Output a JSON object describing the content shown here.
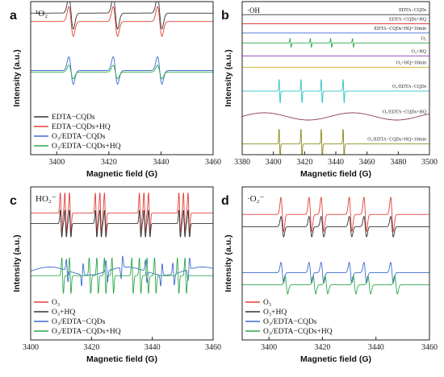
{
  "chart_data": [
    {
      "panel_letter": "a",
      "type": "line",
      "species_label": "¹O₂",
      "xlabel": "Magnetic field (G)",
      "ylabel": "Intensity (a.u.)",
      "xlim": [
        3390,
        3460
      ],
      "xticks": [
        3400,
        3420,
        3440,
        3460
      ],
      "legend_position": "bottom-left",
      "series": [
        {
          "name": "EDTA−CQDs",
          "color": "#333333",
          "peaks": [
            3405.5,
            3422.5,
            3439.5
          ],
          "amplitude": 1.0
        },
        {
          "name": "EDTA−CQDs+HQ",
          "color": "#e0403a",
          "peaks": [
            3405.5,
            3422.5,
            3439.5
          ],
          "amplitude": 0.95
        },
        {
          "name": "O₃/EDTA−CQDs",
          "color": "#3a6bd1",
          "peaks": [
            3405.5,
            3422.5,
            3439.5
          ],
          "amplitude": 0.8
        },
        {
          "name": "O₃/EDTA−CQDs+HQ",
          "color": "#2da84a",
          "peaks": [
            3405.5,
            3422.5,
            3439.5
          ],
          "amplitude": 0.45
        }
      ]
    },
    {
      "panel_letter": "b",
      "type": "line",
      "species_label": "·OH",
      "xlabel": "Magnetic field (G)",
      "ylabel": "Intensity (a.u.)",
      "xlim": [
        3380,
        3500
      ],
      "xticks": [
        3380,
        3400,
        3420,
        3440,
        3460,
        3480,
        3500
      ],
      "series": [
        {
          "name": "EDTA−CQDs",
          "color": "#333333",
          "peaks": [],
          "amplitude": 0
        },
        {
          "name": "EDTA−CQDs+HQ",
          "color": "#e0403a",
          "peaks": [],
          "amplitude": 0
        },
        {
          "name": "EDTA−CQDs+HQ+10min",
          "color": "#3a6bd1",
          "peaks": [],
          "amplitude": 0
        },
        {
          "name": "O₃",
          "color": "#2da84a",
          "peaks": [
            3411,
            3424,
            3437,
            3451
          ],
          "amplitude": 0.45
        },
        {
          "name": "O₃+HQ",
          "color": "#9b59c9",
          "peaks": [],
          "amplitude": 0
        },
        {
          "name": "O₃+HQ+10min",
          "color": "#d4a21a",
          "peaks": [],
          "amplitude": 0
        },
        {
          "name": "O₃/EDTA−CQDs",
          "color": "#2fc4c8",
          "peaks": [
            3404,
            3418,
            3431,
            3445
          ],
          "amplitude": 0.7
        },
        {
          "name": "O₃/EDTA−CQDs+HQ",
          "color": "#8b3a62",
          "peaks": [],
          "amplitude": 0.25
        },
        {
          "name": "O₃/EDTA−CQDs+HQ+10min",
          "color": "#8c8a1e",
          "peaks": [
            3404,
            3418,
            3431,
            3445
          ],
          "amplitude": 1.0
        }
      ]
    },
    {
      "panel_letter": "c",
      "type": "line",
      "species_label": "HO₂⁻",
      "xlabel": "Magnetic field (G)",
      "ylabel": "Intensity (a.u.)",
      "xlim": [
        3400,
        3460
      ],
      "xticks": [
        3400,
        3420,
        3440,
        3460
      ],
      "legend_position": "bottom-left",
      "series": [
        {
          "name": "O₃",
          "color": "#e0403a",
          "peaks": [
            3410,
            3411.5,
            3413,
            3421.5,
            3423,
            3424.5,
            3436,
            3437.5,
            3439,
            3449,
            3450.5,
            3452
          ],
          "amplitude": 1.0
        },
        {
          "name": "O₃+HQ",
          "color": "#333333",
          "peaks": [
            3410,
            3411.5,
            3413,
            3421.5,
            3423,
            3424.5,
            3436,
            3437.5,
            3439,
            3449,
            3450.5,
            3452
          ],
          "amplitude": 0.6
        },
        {
          "name": "O₃/EDTA−CQDs",
          "color": "#3a6bd1",
          "peaks": [
            3412,
            3417,
            3425,
            3430,
            3438,
            3443,
            3447,
            3452
          ],
          "amplitude": 0.6
        },
        {
          "name": "O₃/EDTA−CQDs+HQ",
          "color": "#2da84a",
          "peaks": [
            3410.5,
            3413,
            3419.5,
            3422,
            3424.5,
            3427,
            3433.5,
            3436,
            3438.5,
            3441,
            3448.5,
            3451
          ],
          "amplitude": 1.0
        }
      ]
    },
    {
      "panel_letter": "d",
      "type": "line",
      "species_label": "·O₂⁻",
      "xlabel": "Magnetic field (G)",
      "ylabel": "Intensity (a.u.)",
      "xlim": [
        3390,
        3460
      ],
      "xticks": [
        3400,
        3420,
        3440,
        3460
      ],
      "legend_position": "bottom-left",
      "series": [
        {
          "name": "O₃",
          "color": "#e0403a",
          "peaks": [
            3405,
            3415.5,
            3420,
            3430.5,
            3436,
            3446
          ],
          "amplitude": 1.0
        },
        {
          "name": "O₃+HQ",
          "color": "#333333",
          "peaks": [
            3405,
            3415.5,
            3420,
            3430.5,
            3436,
            3446
          ],
          "amplitude": 0.6
        },
        {
          "name": "O₃/EDTA−CQDs",
          "color": "#3a6bd1",
          "peaks": [
            3405,
            3415.5,
            3420,
            3430.5,
            3436,
            3446
          ],
          "amplitude": 0.55
        },
        {
          "name": "O₃/EDTA−CQDs+HQ",
          "color": "#2da84a",
          "peaks": [
            3406.5,
            3417,
            3421.5,
            3432,
            3437.5,
            3447.5
          ],
          "amplitude": 0.5
        }
      ]
    }
  ]
}
